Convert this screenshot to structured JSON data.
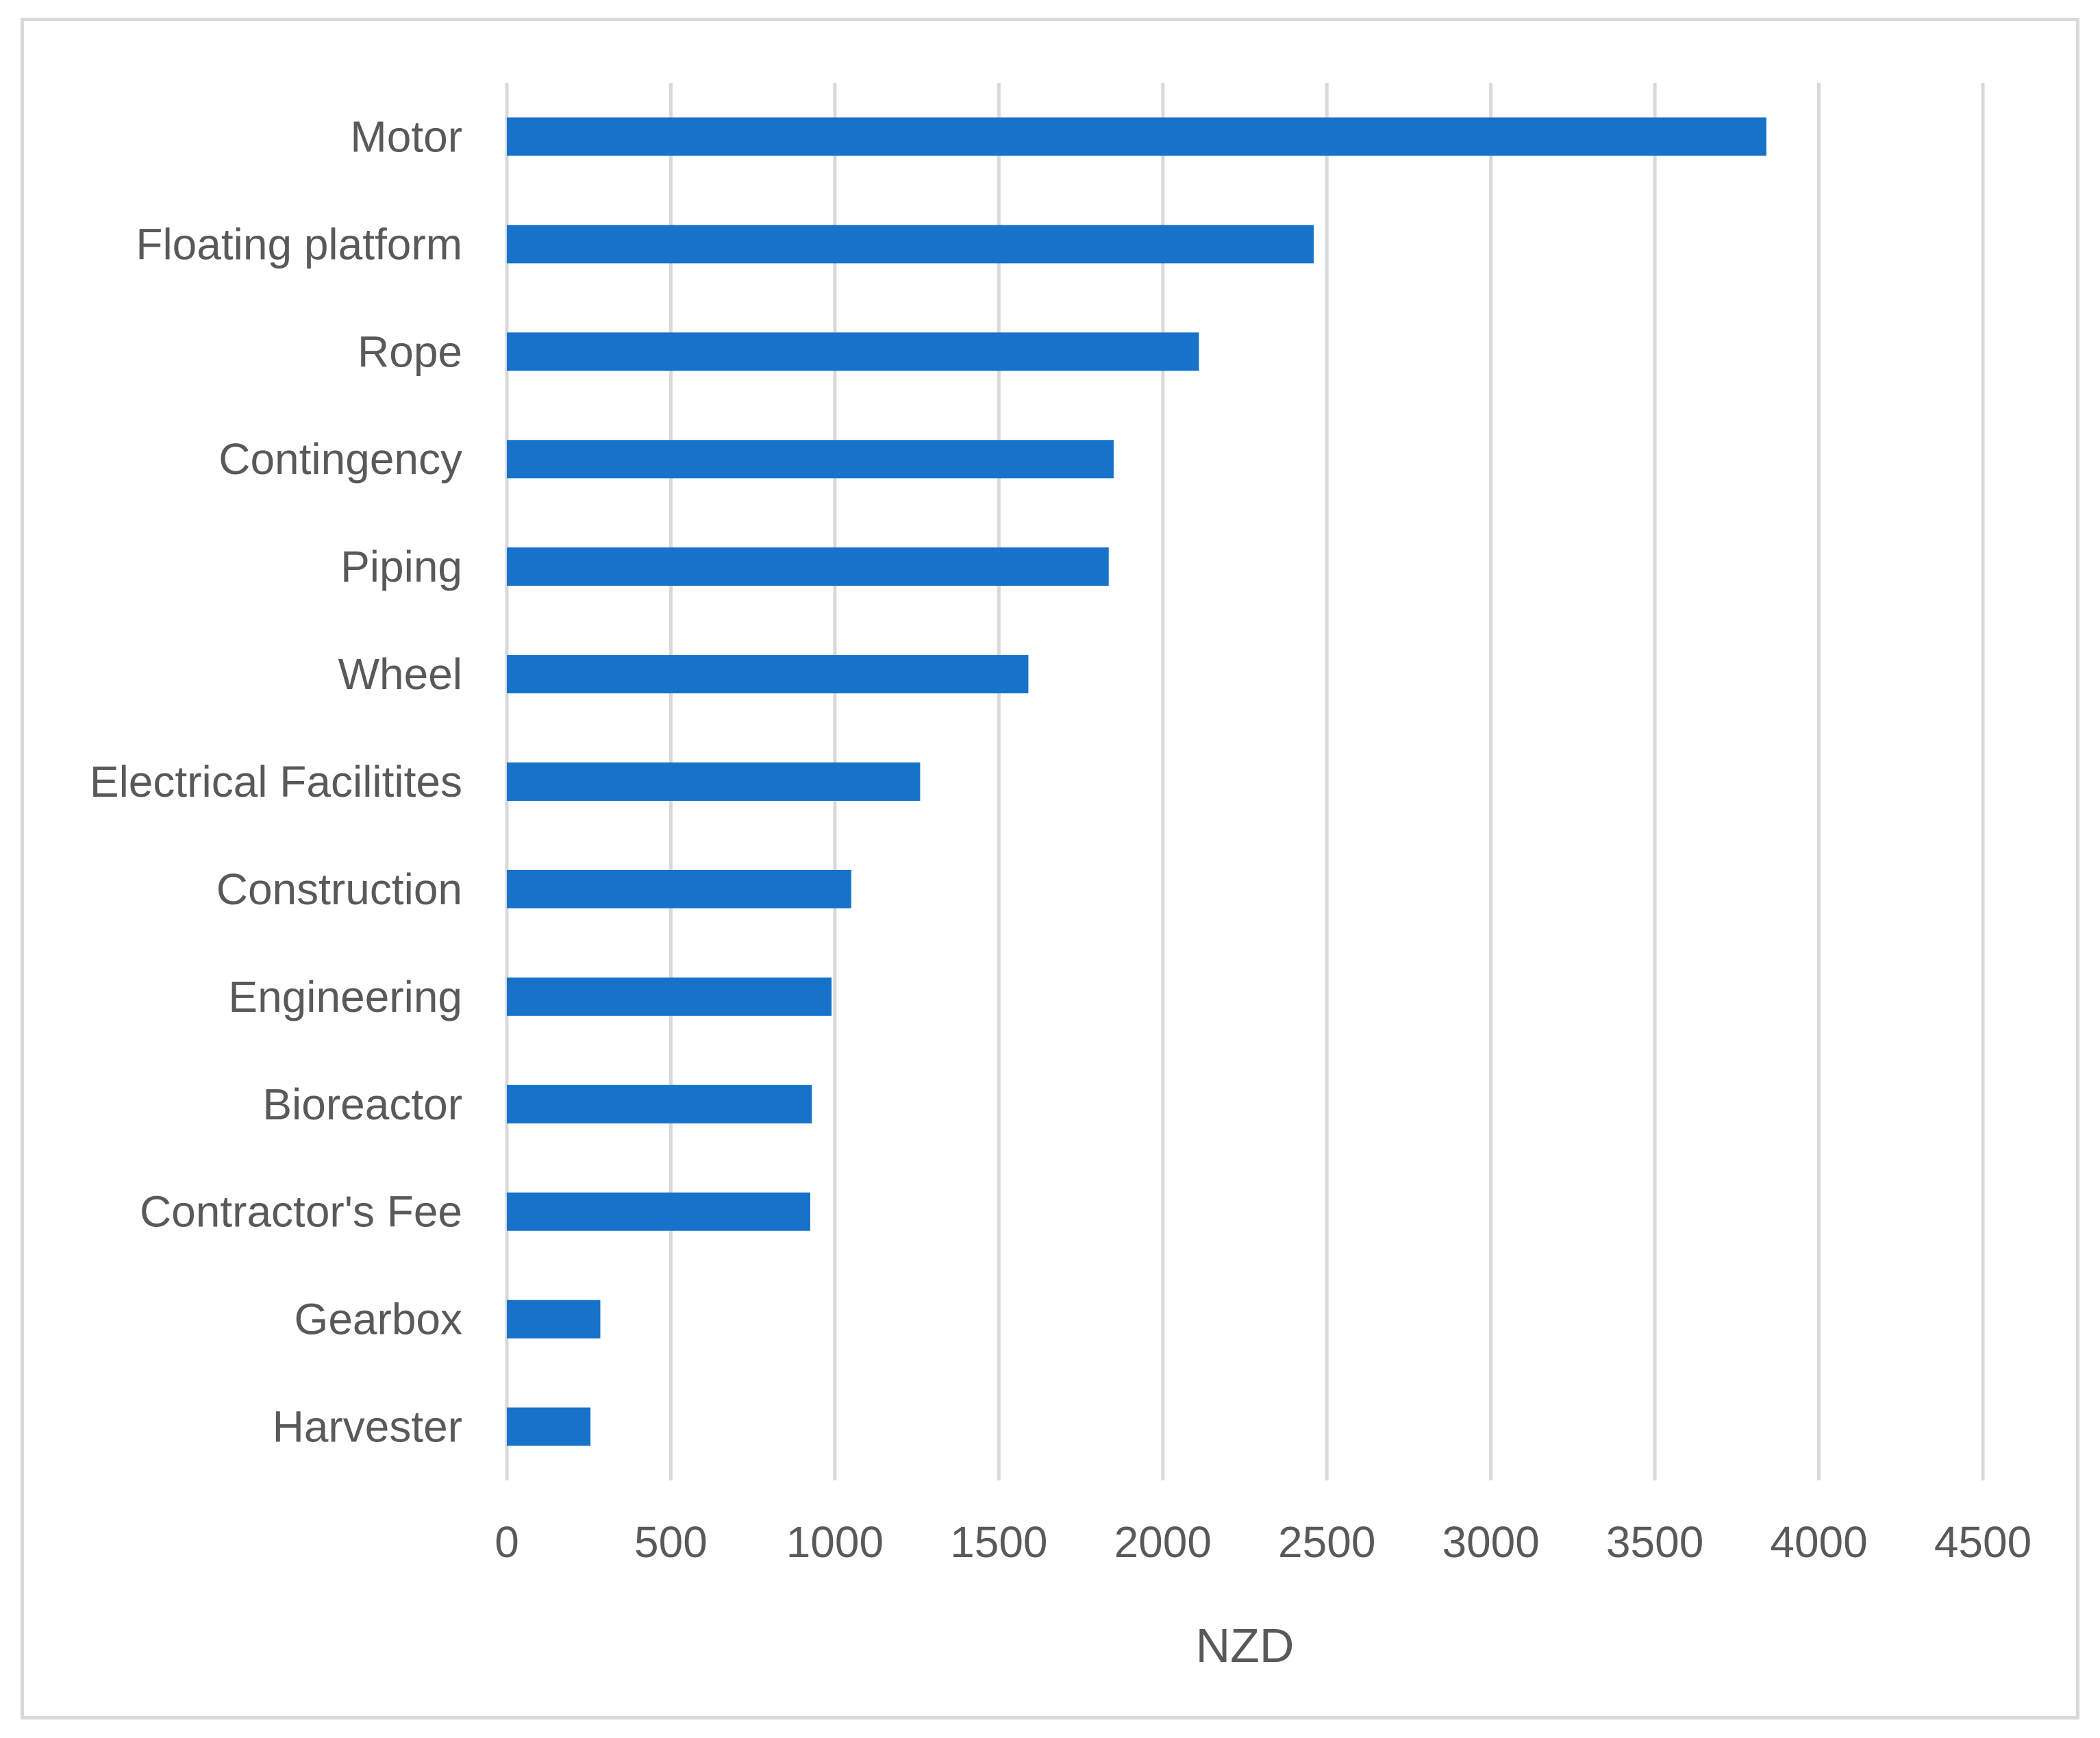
{
  "chart_data": {
    "type": "bar",
    "orientation": "horizontal",
    "title": "",
    "xlabel": "NZD",
    "ylabel": "",
    "xlim": [
      0,
      4500
    ],
    "x_ticks": [
      0,
      500,
      1000,
      1500,
      2000,
      2500,
      3000,
      3500,
      4000,
      4500
    ],
    "grid": true,
    "legend": "none",
    "bar_color": "#1772c9",
    "categories": [
      "Motor",
      "Floating platform",
      "Rope",
      "Contingency",
      "Piping",
      "Wheel",
      "Electrical Facilitites",
      "Construction",
      "Engineering",
      "Bioreactor",
      "Contractor's Fee",
      "Gearbox",
      "Harvester"
    ],
    "values": [
      3840,
      2460,
      2110,
      1850,
      1835,
      1590,
      1260,
      1050,
      990,
      930,
      925,
      285,
      255
    ]
  }
}
